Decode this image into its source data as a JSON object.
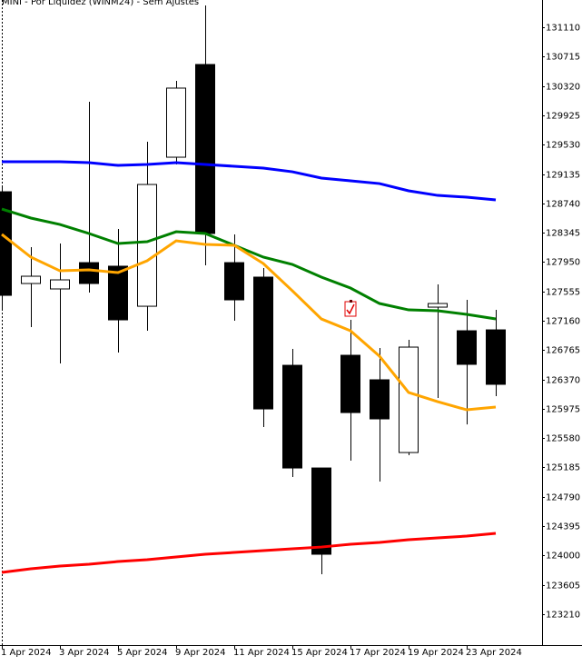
{
  "chart_data": {
    "type": "candlestick",
    "title": "MINI - Por Liquidez (WINM24) - Sem Ajustes",
    "categories": [
      "1 Apr 2024",
      null,
      "3 Apr 2024",
      null,
      "5 Apr 2024",
      null,
      "9 Apr 2024",
      null,
      "11 Apr 2024",
      null,
      "15 Apr 2024",
      null,
      "17 Apr 2024",
      null,
      "19 Apr 2024",
      null,
      "23 Apr 2024",
      null
    ],
    "open": [
      128896,
      127661,
      127588,
      127942,
      127894,
      127355,
      129361,
      130609,
      127942,
      127747,
      126560,
      125178,
      126695,
      126365,
      125386,
      127343,
      127025,
      127037
    ],
    "high": [
      128970,
      128150,
      128199,
      130107,
      128395,
      129569,
      130388,
      131404,
      128322,
      127869,
      126781,
      125178,
      127172,
      126793,
      126903,
      127649,
      127441,
      127306
    ],
    "low": [
      127319,
      127074,
      126585,
      127539,
      126732,
      127025,
      129263,
      127906,
      127160,
      125729,
      125056,
      123748,
      125276,
      124995,
      125350,
      126120,
      125765,
      126145
    ],
    "close": [
      127502,
      127759,
      127710,
      127661,
      127172,
      128994,
      130291,
      128334,
      127441,
      125973,
      125178,
      124017,
      125924,
      125839,
      126805,
      127392,
      126573,
      126304
    ],
    "up_color": "#ffffff",
    "down_color": "#000000",
    "series": [
      {
        "color": "#0000ff",
        "values": [
          129300,
          129300,
          129300,
          129288,
          129251,
          129263,
          129288,
          129263,
          129239,
          129214,
          129165,
          129080,
          129043,
          129006,
          128909,
          128847,
          128823,
          128786
        ]
      },
      {
        "color": "#008000",
        "values": [
          128664,
          128542,
          128456,
          128334,
          128199,
          128224,
          128358,
          128334,
          128175,
          128016,
          127918,
          127747,
          127600,
          127392,
          127306,
          127294,
          127245,
          127184
        ]
      },
      {
        "color": "#ffa500",
        "values": [
          128322,
          128016,
          127832,
          127845,
          127808,
          127967,
          128236,
          128187,
          128175,
          127930,
          127563,
          127184,
          127025,
          126683,
          126194,
          126071,
          125961,
          125998
        ]
      },
      {
        "color": "#ff0000",
        "values": [
          123772,
          123821,
          123858,
          123882,
          123919,
          123943,
          123980,
          124017,
          124041,
          124066,
          124090,
          124114,
          124151,
          124176,
          124212,
          124237,
          124261,
          124298
        ]
      }
    ],
    "ylim": [
      122794,
      131477
    ],
    "yticks": [
      123210,
      123605,
      124000,
      124395,
      124790,
      125185,
      125580,
      125975,
      126370,
      126765,
      127160,
      127555,
      127950,
      128345,
      128740,
      129135,
      129530,
      129925,
      130320,
      130715,
      131110
    ],
    "grid": false
  }
}
